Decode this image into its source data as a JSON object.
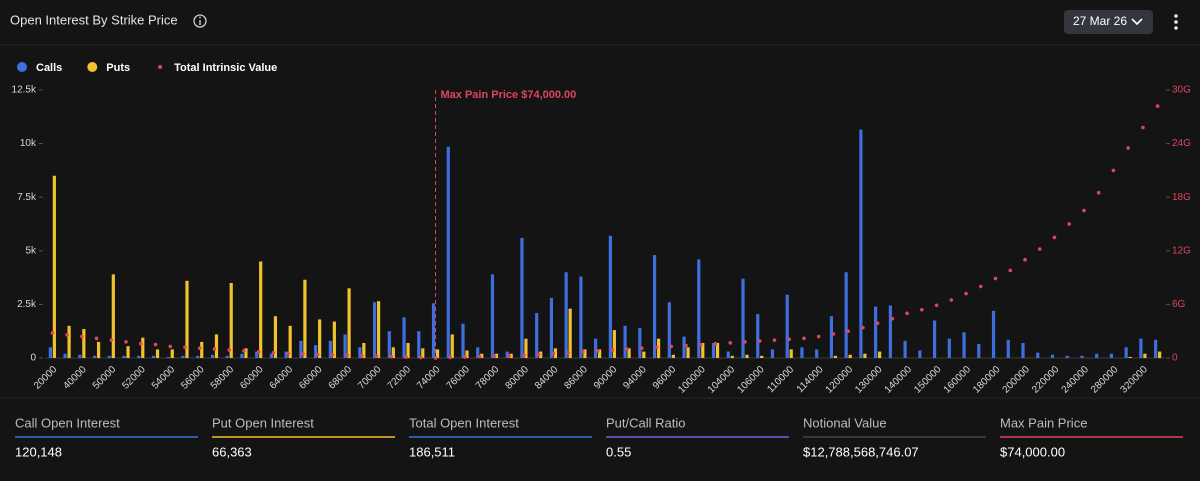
{
  "header": {
    "title": "Open Interest By Strike Price",
    "date": "27 Mar 26"
  },
  "chart_data": {
    "type": "bar",
    "categories": [
      "20000",
      null,
      "40000",
      null,
      "50000",
      null,
      "52000",
      null,
      "54000",
      null,
      "56000",
      null,
      "58000",
      null,
      "60000",
      null,
      "64000",
      null,
      "66000",
      null,
      "68000",
      null,
      "70000",
      null,
      "72000",
      null,
      "74000",
      null,
      "76000",
      null,
      "78000",
      null,
      "80000",
      null,
      "84000",
      null,
      "86000",
      null,
      "90000",
      null,
      "94000",
      null,
      "96000",
      null,
      "100000",
      null,
      "104000",
      null,
      "106000",
      null,
      "110000",
      null,
      "114000",
      null,
      "120000",
      null,
      "130000",
      null,
      "140000",
      null,
      "150000",
      null,
      "160000",
      null,
      "180000",
      null,
      "200000",
      null,
      "220000",
      null,
      "240000",
      null,
      "280000",
      null,
      "320000",
      null
    ],
    "series": [
      {
        "name": "Calls",
        "color": "#3d6fe0",
        "values": [
          500,
          200,
          150,
          100,
          100,
          100,
          100,
          100,
          50,
          100,
          100,
          150,
          100,
          200,
          300,
          200,
          300,
          800,
          600,
          800,
          1100,
          500,
          2600,
          1250,
          1900,
          1250,
          2550,
          9850,
          1600,
          500,
          3900,
          300,
          5600,
          2100,
          2800,
          4000,
          3800,
          900,
          5700,
          1500,
          1400,
          4800,
          2600,
          1000,
          4600,
          700,
          300,
          3700,
          2050,
          400,
          2950,
          500,
          400,
          1950,
          4000,
          10650,
          2400,
          2450,
          800,
          350,
          1750,
          900,
          1200,
          650,
          2200,
          850,
          700,
          250,
          150,
          100,
          100,
          200,
          200,
          500,
          900,
          850
        ]
      },
      {
        "name": "Puts",
        "color": "#f2c12e",
        "values": [
          8500,
          1500,
          1350,
          750,
          3900,
          550,
          950,
          400,
          400,
          3600,
          750,
          1100,
          3500,
          450,
          4500,
          1950,
          1500,
          3650,
          1800,
          1700,
          3250,
          700,
          2650,
          500,
          700,
          450,
          400,
          1100,
          350,
          200,
          200,
          200,
          900,
          300,
          450,
          2300,
          400,
          400,
          1300,
          450,
          300,
          900,
          150,
          500,
          700,
          700,
          100,
          150,
          100,
          0,
          400,
          0,
          0,
          100,
          150,
          200,
          300,
          0,
          0,
          0,
          0,
          0,
          0,
          0,
          0,
          0,
          0,
          0,
          0,
          0,
          0,
          0,
          0,
          50,
          200,
          300
        ]
      },
      {
        "name": "Total Intrinsic Value",
        "color": "#e0455c",
        "type": "scatter",
        "axis": "y2",
        "values": [
          2800000000.0,
          2600000000.0,
          2400000000.0,
          2200000000.0,
          2000000000.0,
          1800000000.0,
          1600000000.0,
          1500000000.0,
          1300000000.0,
          1200000000.0,
          1100000000.0,
          1000000000.0,
          900000000.0,
          800000000.0,
          700000000.0,
          600000000.0,
          500000000.0,
          450000000.0,
          400000000.0,
          350000000.0,
          300000000.0,
          250000000.0,
          200000000.0,
          150000000.0,
          100000000.0,
          50000000.0,
          0,
          50000000.0,
          100000000.0,
          150000000.0,
          200000000.0,
          250000000.0,
          300000000.0,
          400000000.0,
          500000000.0,
          600000000.0,
          700000000.0,
          800000000.0,
          900000000.0,
          1000000000.0,
          1100000000.0,
          1200000000.0,
          1300000000.0,
          1400000000.0,
          1500000000.0,
          1600000000.0,
          1700000000.0,
          1800000000.0,
          1900000000.0,
          2000000000.0,
          2100000000.0,
          2200000000.0,
          2400000000.0,
          2700000000.0,
          3000000000.0,
          3400000000.0,
          3900000000.0,
          4400000000.0,
          5000000000.0,
          5400000000.0,
          5900000000.0,
          6500000000.0,
          7200000000.0,
          8000000000.0,
          8900000000.0,
          9800000000.0,
          11000000000.0,
          12200000000.0,
          13500000000.0,
          15000000000.0,
          16500000000.0,
          18500000000.0,
          21000000000.0,
          23500000000.0,
          25800000000.0,
          28200000000.0
        ]
      }
    ],
    "ylim": [
      0,
      12500
    ],
    "yticks": [
      0,
      {
        "value": 2500,
        "label": "2.5k"
      },
      {
        "value": 5000,
        "label": "5k"
      },
      {
        "value": 7500,
        "label": "7.5k"
      },
      {
        "value": 10000,
        "label": "10k"
      },
      {
        "value": 12500,
        "label": "12.5k"
      }
    ],
    "y2lim": [
      0,
      30000000000
    ],
    "y2ticks": [
      0,
      {
        "value": 6000000000,
        "label": "6G"
      },
      {
        "value": 12000000000,
        "label": "12G"
      },
      {
        "value": 18000000000,
        "label": "18G"
      },
      {
        "value": 24000000000,
        "label": "24G"
      },
      {
        "value": 30000000000,
        "label": "30G"
      }
    ],
    "annotation": {
      "text": "Max Pain Price $74,000.00",
      "category": "74000"
    }
  },
  "stats": [
    {
      "label": "Call Open Interest",
      "value": "120,148",
      "color": "#3d6fe0"
    },
    {
      "label": "Put Open Interest",
      "value": "66,363",
      "color": "#f2c12e"
    },
    {
      "label": "Total Open Interest",
      "value": "186,511",
      "color": "#3d6fe0"
    },
    {
      "label": "Put/Call Ratio",
      "value": "0.55",
      "color": "#7b5ce6"
    },
    {
      "label": "Notional Value",
      "value": "$12,788,568,746.07",
      "color": "#444444"
    },
    {
      "label": "Max Pain Price",
      "value": "$74,000.00",
      "color": "#e0455c"
    }
  ]
}
